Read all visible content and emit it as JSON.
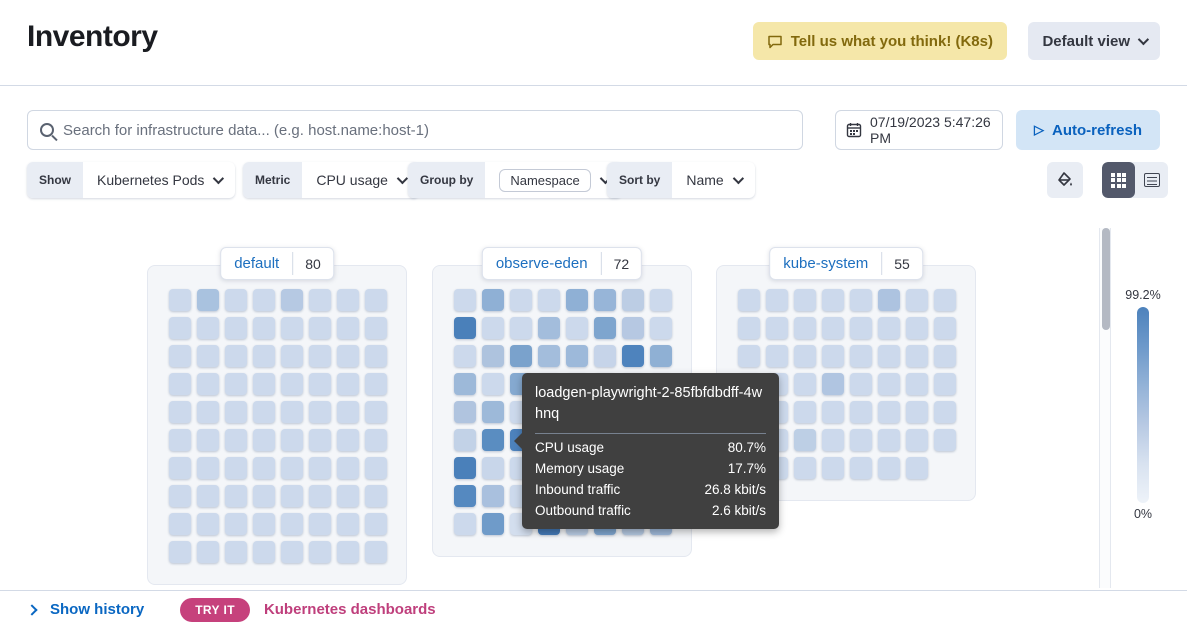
{
  "header": {
    "title": "Inventory",
    "feedback_button": "Tell us what you think! (K8s)",
    "view_selector": "Default view"
  },
  "search": {
    "placeholder": "Search for infrastructure data... (e.g. host.name:host-1)",
    "datetime": "07/19/2023 5:47:26 PM",
    "auto_refresh_label": "Auto-refresh"
  },
  "toolbar": {
    "show_label": "Show",
    "show_value": "Kubernetes Pods",
    "metric_label": "Metric",
    "metric_value": "CPU usage",
    "group_by_label": "Group by",
    "group_by_value": "Namespace",
    "sort_by_label": "Sort by",
    "sort_by_value": "Name"
  },
  "legend": {
    "max": "99.2%",
    "min": "0%"
  },
  "groups": [
    {
      "name": "default",
      "count": "80",
      "columns": 8,
      "cells": [
        "#ccd9ec",
        "#a9c2df",
        "#ccd9ec",
        "#ccd9ec",
        "#b6c9e3",
        "#ccd9ec",
        "#ccd9ec",
        "#ccd9ec",
        "#ccd9ec",
        "#ccd9ec",
        "#ccd9ec",
        "#ccd9ec",
        "#ccd9ec",
        "#ccd9ec",
        "#ccd9ec",
        "#ccd9ec",
        "#ccd9ec",
        "#ccd9ec",
        "#ccd9ec",
        "#ccd9ec",
        "#ccd9ec",
        "#ccd9ec",
        "#ccd9ec",
        "#ccd9ec",
        "#ccd9ec",
        "#ccd9ec",
        "#ccd9ec",
        "#ccd9ec",
        "#ccd9ec",
        "#ccd9ec",
        "#ccd9ec",
        "#ccd9ec",
        "#ccd9ec",
        "#ccd9ec",
        "#ccd9ec",
        "#ccd9ec",
        "#ccd9ec",
        "#ccd9ec",
        "#ccd9ec",
        "#ccd9ec",
        "#ccd9ec",
        "#ccd9ec",
        "#ccd9ec",
        "#ccd9ec",
        "#ccd9ec",
        "#ccd9ec",
        "#ccd9ec",
        "#ccd9ec",
        "#ccd9ec",
        "#ccd9ec",
        "#ccd9ec",
        "#ccd9ec",
        "#ccd9ec",
        "#ccd9ec",
        "#ccd9ec",
        "#ccd9ec",
        "#ccd9ec",
        "#ccd9ec",
        "#ccd9ec",
        "#ccd9ec",
        "#ccd9ec",
        "#ccd9ec",
        "#ccd9ec",
        "#ccd9ec",
        "#ccd9ec",
        "#ccd9ec",
        "#ccd9ec",
        "#ccd9ec",
        "#ccd9ec",
        "#ccd9ec",
        "#ccd9ec",
        "#ccd9ec",
        "#ccd9ec",
        "#ccd9ec",
        "#ccd9ec",
        "#ccd9ec",
        "#ccd9ec",
        "#ccd9ec",
        "#ccd9ec",
        "#ccd9ec"
      ]
    },
    {
      "name": "observe-eden",
      "count": "72",
      "columns": 8,
      "cells": [
        "#ccd9ec",
        "#8fb0d5",
        "#ccd9ec",
        "#ccd9ec",
        "#8fb0d5",
        "#97b5d8",
        "#bccde4",
        "#ccd9ec",
        "#4a80ba",
        "#ccd9ec",
        "#ccd9ec",
        "#a3bddc",
        "#ccd9ec",
        "#7ea5ce",
        "#b6c8e2",
        "#ccd9ec",
        "#ccd9ec",
        "#aec3de",
        "#7aa2cc",
        "#a3bddc",
        "#9db9da",
        "#c6d4e9",
        "#4e83bd",
        "#8fb0d4",
        "#9db9d9",
        "#ccd9ec",
        "#85a9d0",
        "#ccd9ec",
        "#ccd9ec",
        "#ccd9ec",
        "#ccd9ec",
        "#ccd9ec",
        "#b0c4df",
        "#9db9d9",
        "#ccd9ec",
        "#ccd9ec",
        "#ccd9ec",
        "#ccd9ec",
        "#ccd9ec",
        "#ccd9ec",
        "#c2d2e7",
        "#5a8dc1",
        "#4d82bc",
        "#ccd9ec",
        "#ccd9ec",
        "#ccd9ec",
        "#ccd9ec",
        "#ccd9ec",
        "#4a80ba",
        "#c8d6ea",
        "#ccd9ec",
        "#ccd9ec",
        "#ccd9ec",
        "#ccd9ec",
        "#ccd9ec",
        "#ccd9ec",
        "#5589c0",
        "#a9c0de",
        "#ccd9ec",
        "#ccd9ec",
        "#ccd9ec",
        "#ccd9ec",
        "#ccd9ec",
        "#ccd9ec",
        "#ccd9ec",
        "#6f9bc9",
        "#d3deee",
        "#4379b7",
        "#b9cce4",
        "#7ea5cf",
        "#b3c7e0",
        "#9fb9da"
      ]
    },
    {
      "name": "kube-system",
      "count": "55",
      "columns": 8,
      "cells": [
        "#ccd9ec",
        "#ccd9ec",
        "#ccd9ec",
        "#ccd9ec",
        "#ccd9ec",
        "#adc3e0",
        "#ccd9ec",
        "#ccd9ec",
        "#ccd9ec",
        "#ccd9ec",
        "#ccd9ec",
        "#ccd9ec",
        "#ccd9ec",
        "#ccd9ec",
        "#ccd9ec",
        "#ccd9ec",
        "#ccd9ec",
        "#ccd9ec",
        "#ccd9ec",
        "#ccd9ec",
        "#ccd9ec",
        "#ccd9ec",
        "#ccd9ec",
        "#ccd9ec",
        "#ccd9ec",
        "#ccd9ec",
        "#ccd9ec",
        "#b0c5e1",
        "#ccd9ec",
        "#ccd9ec",
        "#ccd9ec",
        "#ccd9ec",
        "#ccd9ec",
        "#ccd9ec",
        "#ccd9ec",
        "#ccd9ec",
        "#ccd9ec",
        "#ccd9ec",
        "#ccd9ec",
        "#ccd9ec",
        "#ccd9ec",
        "#ccd9ec",
        "#bdcfe5",
        "#ccd9ec",
        "#ccd9ec",
        "#ccd9ec",
        "#ccd9ec",
        "#ccd9ec",
        "#ccd9ec",
        "#ccd9ec",
        "#ccd9ec",
        "#ccd9ec",
        "#ccd9ec",
        "#ccd9ec",
        "#ccd9ec"
      ]
    }
  ],
  "tooltip": {
    "title": "loadgen-playwright-2-85fbfdbdff-4whnq",
    "rows": [
      {
        "label": "CPU usage",
        "value": "80.7%"
      },
      {
        "label": "Memory usage",
        "value": "17.7%"
      },
      {
        "label": "Inbound traffic",
        "value": "26.8 kbit/s"
      },
      {
        "label": "Outbound traffic",
        "value": "2.6 kbit/s"
      }
    ]
  },
  "footer": {
    "show_history": "Show history",
    "try_it_badge": "TRY IT",
    "dashboards_link": "Kubernetes dashboards"
  },
  "colors": {
    "link_blue": "#1d6fbf",
    "primary_blue": "#0a67c2",
    "feedback_bg": "#f5e7a9",
    "feedback_text": "#82690d",
    "accent_pink": "#c6417c",
    "cell_light": "#ccd9ec",
    "cell_dark": "#4d82bc",
    "legend_gradient": [
      "#4d82bc",
      "#6d99ca",
      "#93b2d7",
      "#b7c9e3",
      "#d8e2f0",
      "#eef3f9"
    ]
  }
}
